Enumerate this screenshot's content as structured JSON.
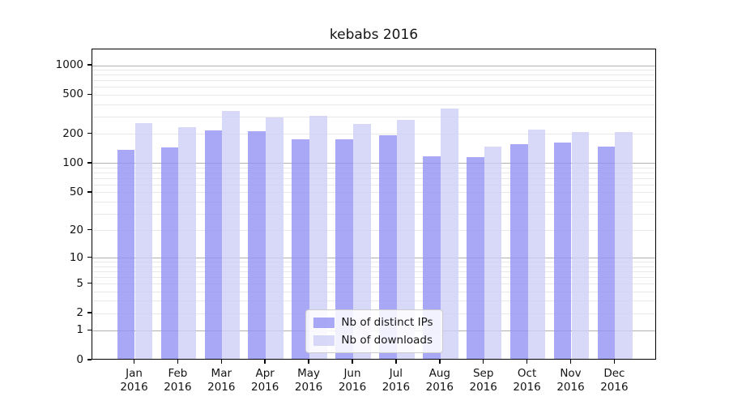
{
  "chart_data": {
    "type": "bar",
    "title": "kebabs 2016",
    "categories": [
      "Jan",
      "Feb",
      "Mar",
      "Apr",
      "May",
      "Jun",
      "Jul",
      "Aug",
      "Sep",
      "Oct",
      "Nov",
      "Dec"
    ],
    "x_year": "2016",
    "series": [
      {
        "name": "Nb of distinct IPs",
        "color": "#9292f4",
        "alpha": 0.8,
        "values": [
          132,
          142,
          211,
          207,
          171,
          170,
          186,
          114,
          112,
          152,
          157,
          143
        ]
      },
      {
        "name": "Nb of downloads",
        "color": "#cecef6",
        "alpha": 0.8,
        "values": [
          250,
          228,
          334,
          287,
          296,
          243,
          271,
          351,
          143,
          213,
          201,
          202
        ]
      }
    ],
    "yscale": "log1p",
    "yticks": [
      0,
      1,
      2,
      5,
      10,
      20,
      50,
      100,
      200,
      500,
      1000
    ],
    "ylim": [
      0,
      1463
    ],
    "grid": true,
    "legend_position": "lower center",
    "colors": {
      "major_grid": "#b0b0b0",
      "minor_grid": "#e8e8e8",
      "spine": "#000000",
      "background": "#ffffff"
    }
  }
}
